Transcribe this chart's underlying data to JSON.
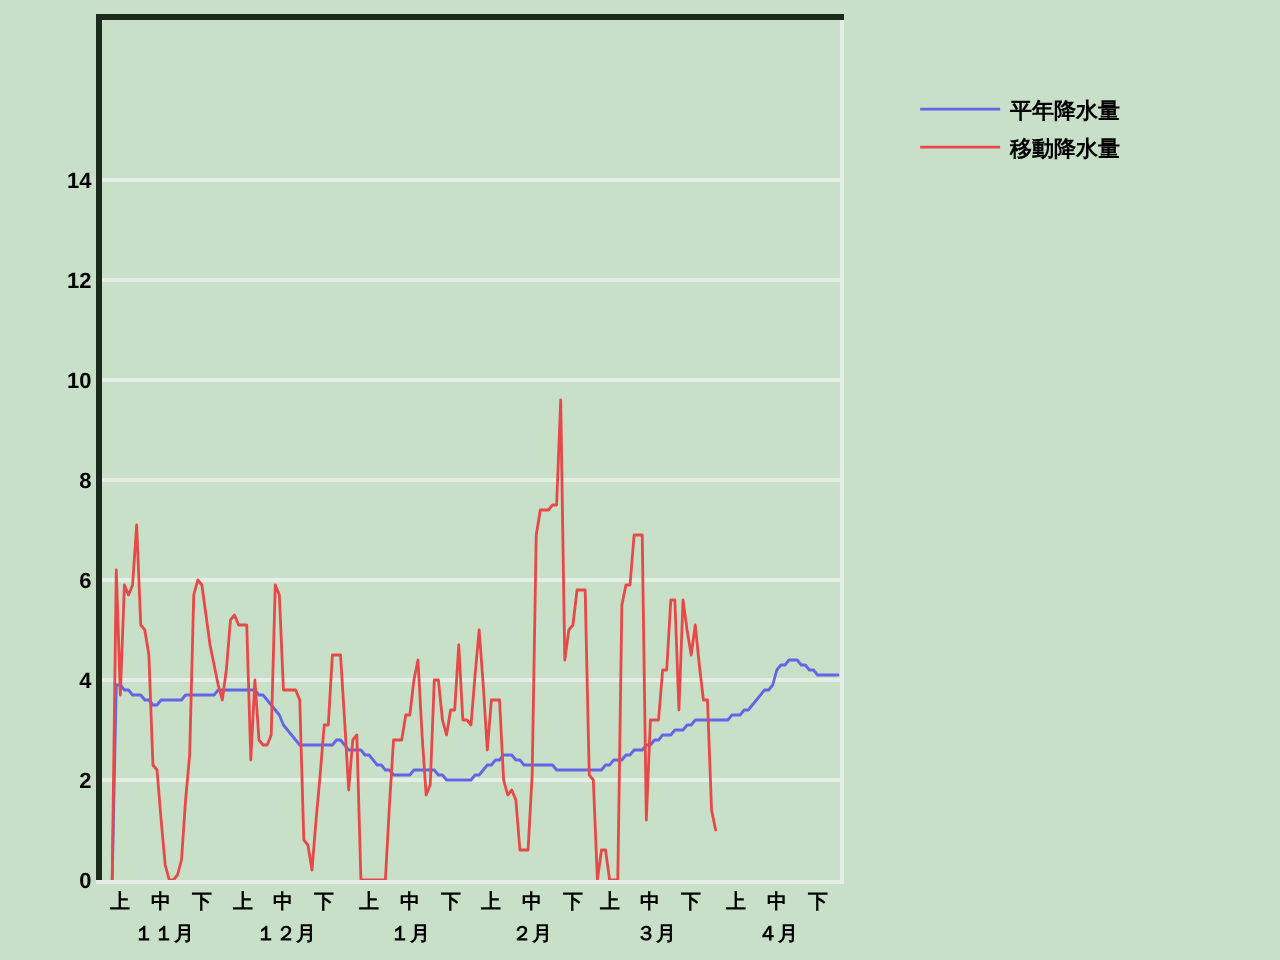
{
  "chart_data": {
    "type": "line",
    "categories": [
      null,
      null,
      null,
      null,
      "上",
      null,
      null,
      null,
      null,
      null,
      null,
      null,
      null,
      null,
      "中",
      null,
      null,
      null,
      null,
      null,
      null,
      null,
      null,
      null,
      "下",
      null,
      null,
      null,
      null,
      null,
      null,
      null,
      null,
      null,
      "上",
      null,
      null,
      null,
      null,
      null,
      null,
      null,
      null,
      null,
      "中",
      null,
      null,
      null,
      null,
      null,
      null,
      null,
      null,
      null,
      "下",
      null,
      null,
      null,
      null,
      null,
      null,
      null,
      null,
      null,
      null,
      "上",
      null,
      null,
      null,
      null,
      null,
      null,
      null,
      null,
      null,
      "中",
      null,
      null,
      null,
      null,
      null,
      null,
      null,
      null,
      null,
      "下",
      null,
      null,
      null,
      null,
      null,
      null,
      null,
      null,
      null,
      "上",
      null,
      null,
      null,
      null,
      null,
      null,
      null,
      null,
      null,
      "中",
      null,
      null,
      null,
      null,
      null,
      null,
      null,
      null,
      null,
      "下",
      null,
      null,
      null,
      null,
      null,
      null,
      null,
      null,
      "上",
      null,
      null,
      null,
      null,
      null,
      null,
      null,
      null,
      null,
      "中",
      null,
      null,
      null,
      null,
      null,
      null,
      null,
      null,
      null,
      "下",
      null,
      null,
      null,
      null,
      null,
      null,
      null,
      null,
      null,
      null,
      "上",
      null,
      null,
      null,
      null,
      null,
      null,
      null,
      null,
      null,
      "中",
      null,
      null,
      null,
      null,
      null,
      null,
      null,
      null,
      null,
      "下",
      null,
      null,
      null,
      null,
      null
    ],
    "annotations": [
      "１１月",
      "１２月",
      "１月",
      "２月",
      "３月",
      "４月"
    ],
    "ylim": [
      0,
      17.2
    ],
    "yticks": [
      0,
      2,
      4,
      6,
      8,
      10,
      12,
      14
    ],
    "grid": "y",
    "legend": "top right",
    "series": [
      {
        "name": "平年降水量",
        "color": "#6464e6",
        "values": [
          null,
          null,
          0,
          3.9,
          3.9,
          3.8,
          3.8,
          3.7,
          3.7,
          3.7,
          3.6,
          3.6,
          3.5,
          3.5,
          3.6,
          3.6,
          3.6,
          3.6,
          3.6,
          3.6,
          3.7,
          3.7,
          3.7,
          3.7,
          3.7,
          3.7,
          3.7,
          3.7,
          3.8,
          3.8,
          3.8,
          3.8,
          3.8,
          3.8,
          3.8,
          3.8,
          3.8,
          3.8,
          3.7,
          3.7,
          3.6,
          3.5,
          3.4,
          3.3,
          3.1,
          3.0,
          2.9,
          2.8,
          2.7,
          2.7,
          2.7,
          2.7,
          2.7,
          2.7,
          2.7,
          2.7,
          2.7,
          2.8,
          2.8,
          2.7,
          2.6,
          2.6,
          2.6,
          2.6,
          2.5,
          2.5,
          2.4,
          2.3,
          2.3,
          2.2,
          2.2,
          2.1,
          2.1,
          2.1,
          2.1,
          2.1,
          2.2,
          2.2,
          2.2,
          2.2,
          2.2,
          2.2,
          2.1,
          2.1,
          2.0,
          2.0,
          2.0,
          2.0,
          2.0,
          2.0,
          2.0,
          2.1,
          2.1,
          2.2,
          2.3,
          2.3,
          2.4,
          2.4,
          2.5,
          2.5,
          2.5,
          2.4,
          2.4,
          2.3,
          2.3,
          2.3,
          2.3,
          2.3,
          2.3,
          2.3,
          2.3,
          2.2,
          2.2,
          2.2,
          2.2,
          2.2,
          2.2,
          2.2,
          2.2,
          2.2,
          2.2,
          2.2,
          2.2,
          2.3,
          2.3,
          2.4,
          2.4,
          2.4,
          2.5,
          2.5,
          2.6,
          2.6,
          2.6,
          2.7,
          2.7,
          2.8,
          2.8,
          2.9,
          2.9,
          2.9,
          3.0,
          3.0,
          3.0,
          3.1,
          3.1,
          3.2,
          3.2,
          3.2,
          3.2,
          3.2,
          3.2,
          3.2,
          3.2,
          3.2,
          3.3,
          3.3,
          3.3,
          3.4,
          3.4,
          3.5,
          3.6,
          3.7,
          3.8,
          3.8,
          3.9,
          4.2,
          4.3,
          4.3,
          4.4,
          4.4,
          4.4,
          4.3,
          4.3,
          4.2,
          4.2,
          4.1,
          4.1,
          4.1,
          4.1,
          4.1,
          4.1
        ]
      },
      {
        "name": "移動降水量",
        "color": "#e84848",
        "values": [
          null,
          null,
          0,
          6.2,
          3.7,
          5.9,
          5.7,
          5.9,
          7.1,
          5.1,
          5.0,
          4.5,
          2.3,
          2.2,
          1.2,
          0.3,
          0,
          0,
          0.1,
          0.4,
          1.6,
          2.5,
          5.7,
          6.0,
          5.9,
          5.3,
          4.7,
          4.3,
          3.9,
          3.6,
          4.2,
          5.2,
          5.3,
          5.1,
          5.1,
          5.1,
          2.4,
          4.0,
          2.8,
          2.7,
          2.7,
          2.9,
          5.9,
          5.7,
          3.8,
          3.8,
          3.8,
          3.8,
          3.6,
          0.8,
          0.7,
          0.2,
          1.2,
          2.1,
          3.1,
          3.1,
          4.5,
          4.5,
          4.5,
          3.2,
          1.8,
          2.8,
          2.9,
          0,
          0,
          0,
          0,
          0,
          0,
          0,
          1.5,
          2.8,
          2.8,
          2.8,
          3.3,
          3.3,
          4.0,
          4.4,
          2.9,
          1.7,
          1.9,
          4.0,
          4.0,
          3.2,
          2.9,
          3.4,
          3.4,
          4.7,
          3.2,
          3.2,
          3.1,
          4.1,
          5.0,
          3.9,
          2.6,
          3.6,
          3.6,
          3.6,
          2.0,
          1.7,
          1.8,
          1.6,
          0.6,
          0.6,
          0.6,
          2.1,
          6.9,
          7.4,
          7.4,
          7.4,
          7.5,
          7.5,
          9.6,
          4.4,
          5.0,
          5.1,
          5.8,
          5.8,
          5.8,
          2.1,
          2.0,
          0,
          0.6,
          0.6,
          0,
          0,
          0,
          5.5,
          5.9,
          5.9,
          6.9,
          6.9,
          6.9,
          1.2,
          3.2,
          3.2,
          3.2,
          4.2,
          4.2,
          5.6,
          5.6,
          3.4,
          5.6,
          5.0,
          4.5,
          5.1,
          4.3,
          3.6,
          3.6,
          1.4,
          1.0,
          null,
          null,
          null,
          null,
          null,
          null,
          null,
          null,
          null,
          null,
          null,
          null,
          null,
          null,
          null,
          null,
          null,
          null,
          null,
          null,
          null,
          null,
          null,
          null,
          null,
          null,
          null,
          null,
          null,
          null
        ]
      }
    ]
  }
}
